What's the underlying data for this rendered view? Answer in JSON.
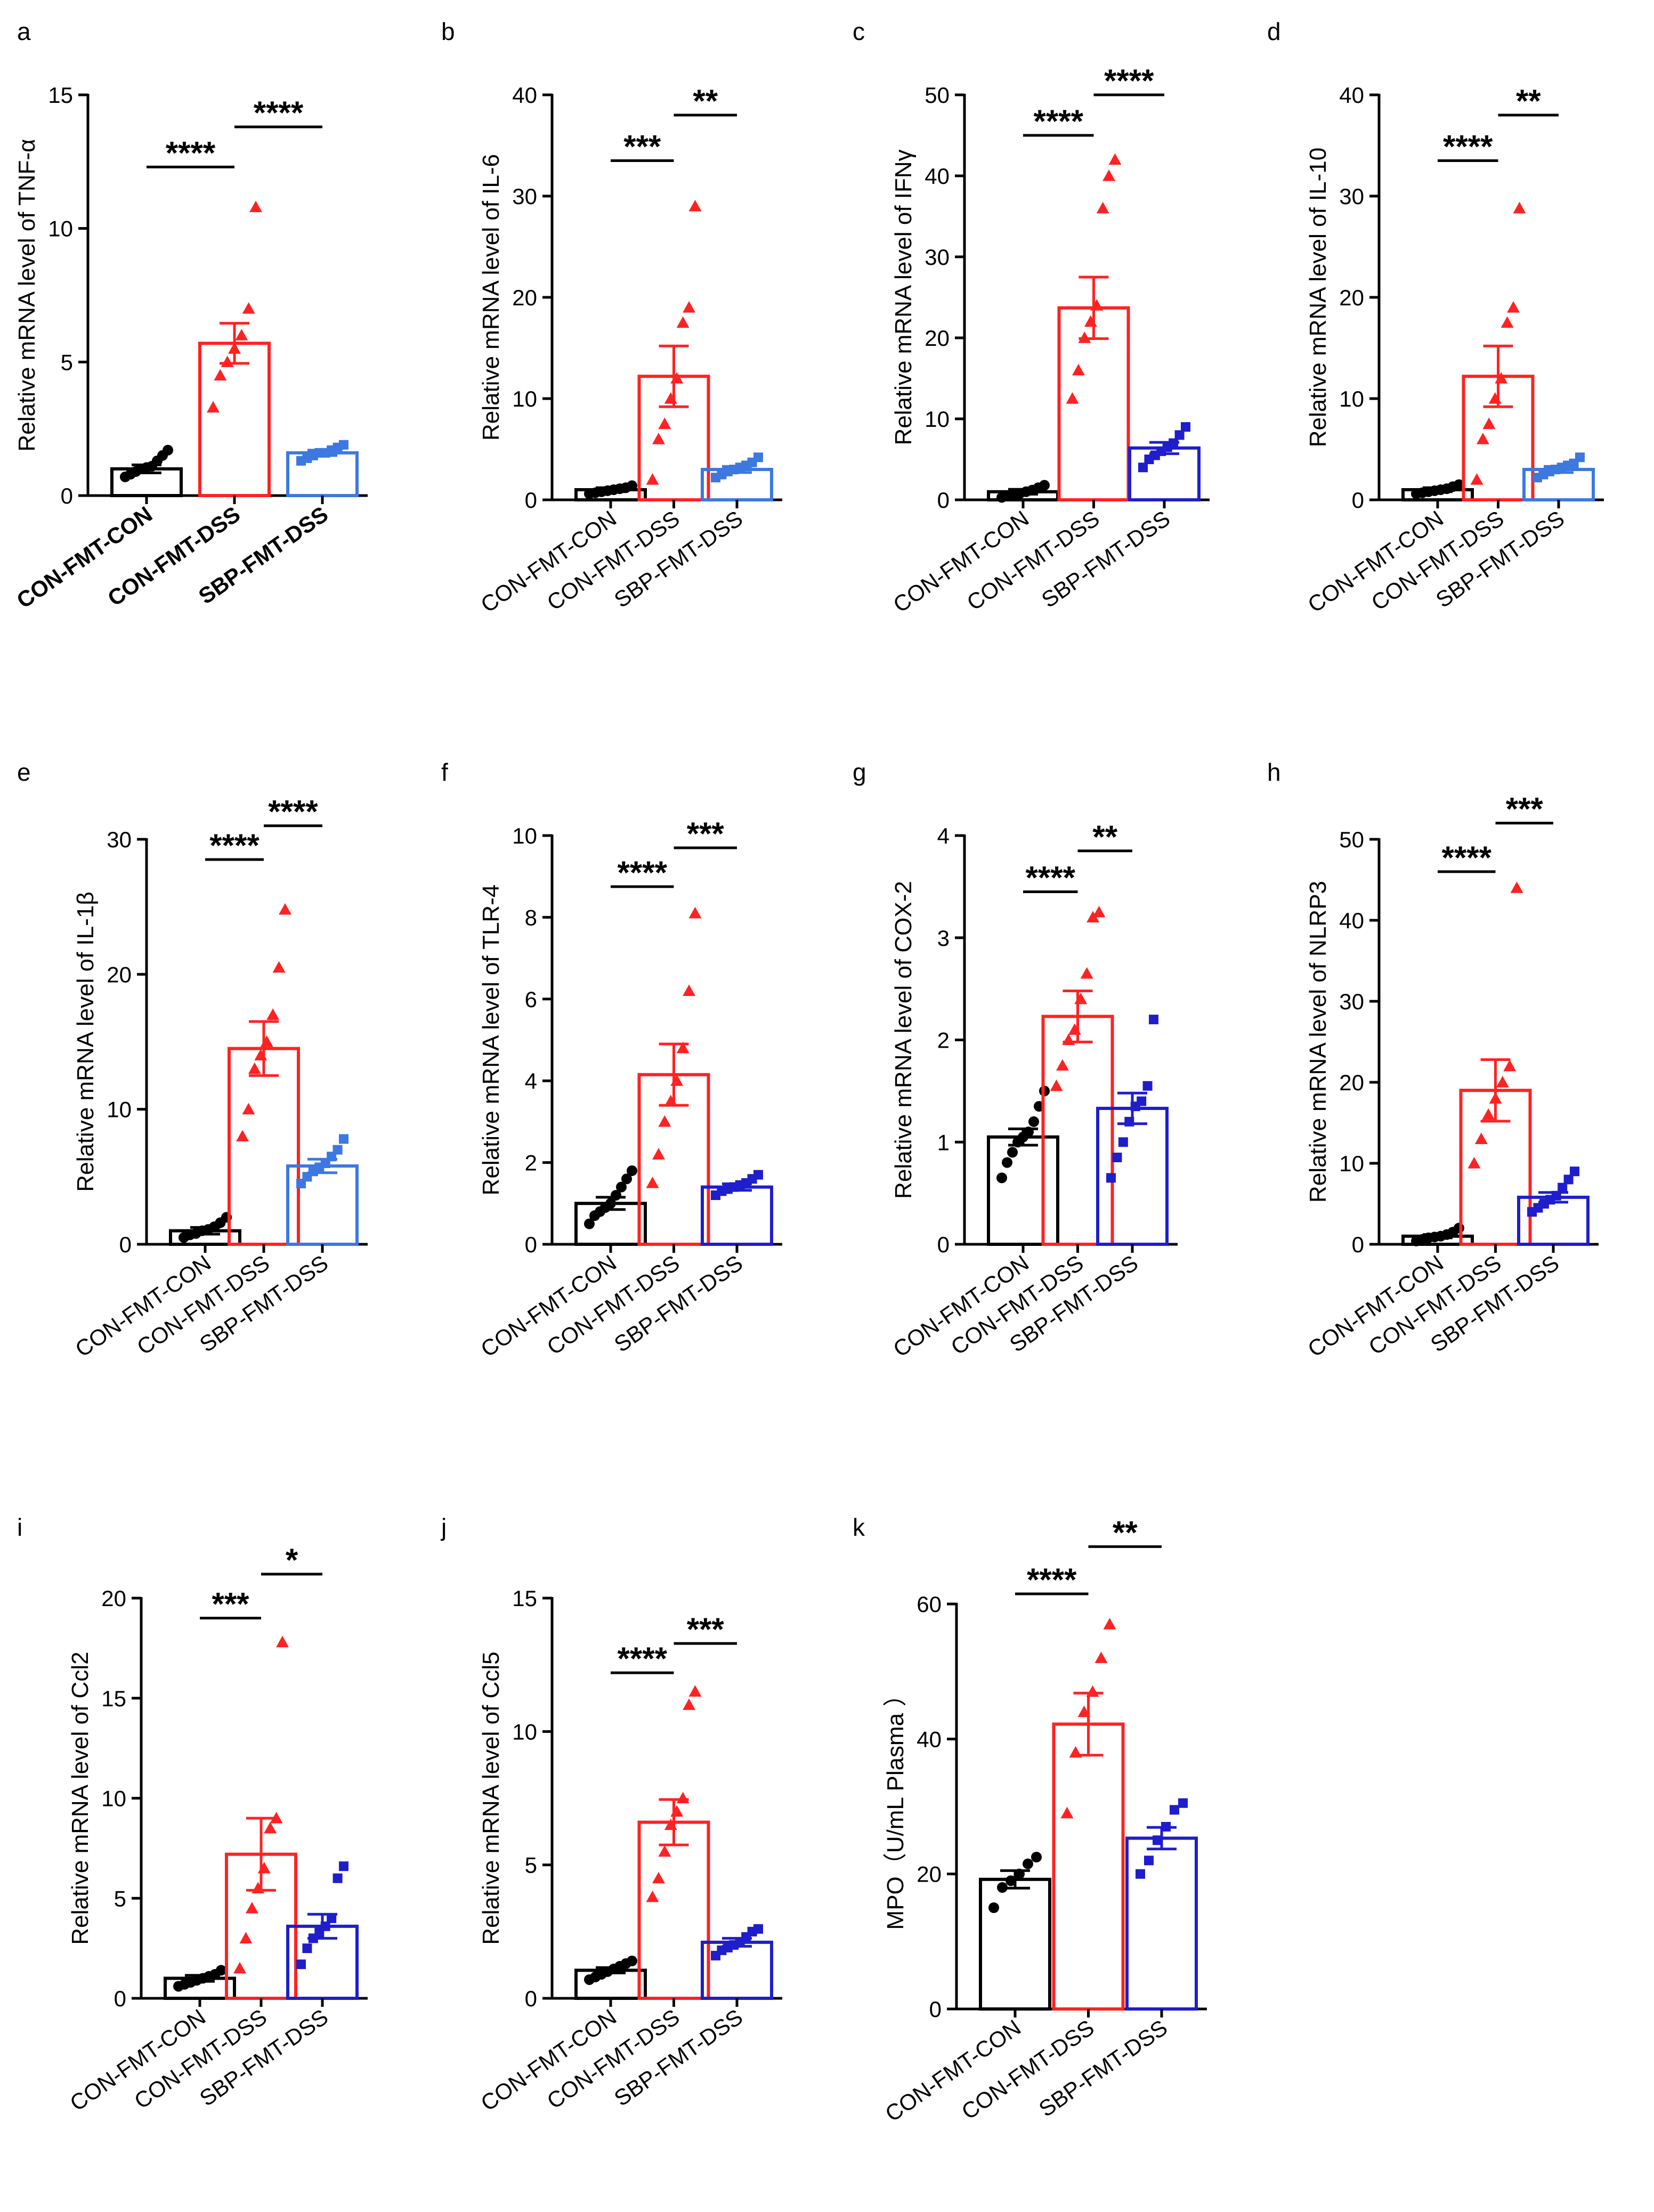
{
  "figure": {
    "x_categories": [
      "CON-FMT-CON",
      "CON-FMT-DSS",
      "SBP-FMT-DSS"
    ],
    "colors": {
      "con": "#000000",
      "dss": "#ff2222",
      "sbp": "#1e1ecc",
      "sbp_light": "#3c78e0"
    }
  },
  "chart_data": [
    {
      "id": "a",
      "type": "bar",
      "panel_label": "a",
      "ylabel": "Relative mRNA level of TNF-α",
      "ylim": [
        0,
        15
      ],
      "yticks": [
        0,
        5,
        10,
        15
      ],
      "bold_xlabels": true,
      "sbp_color": "sbp_light",
      "sbp_marker": "square",
      "categories": [
        "CON-FMT-CON",
        "CON-FMT-DSS",
        "SBP-FMT-DSS"
      ],
      "values": [
        1.0,
        5.7,
        1.6
      ],
      "errors": [
        0.15,
        0.75,
        0.1
      ],
      "points": [
        [
          0.7,
          0.8,
          0.9,
          1.0,
          1.05,
          1.1,
          1.3,
          1.5,
          1.7
        ],
        [
          3.3,
          4.5,
          5.0,
          5.5,
          6.0,
          7.0,
          10.8
        ],
        [
          1.3,
          1.4,
          1.5,
          1.6,
          1.6,
          1.7,
          1.8,
          1.9
        ]
      ],
      "significance": [
        {
          "between": [
            0,
            1
          ],
          "label": "****",
          "y": 12.3
        },
        {
          "between": [
            1,
            2
          ],
          "label": "****",
          "y": 13.8
        }
      ]
    },
    {
      "id": "b",
      "type": "bar",
      "panel_label": "b",
      "ylabel": "Relative mRNA level of IL-6",
      "ylim": [
        0,
        40
      ],
      "yticks": [
        0,
        10,
        20,
        30,
        40
      ],
      "sbp_color": "sbp_light",
      "sbp_marker": "square",
      "categories": [
        "CON-FMT-CON",
        "CON-FMT-DSS",
        "SBP-FMT-DSS"
      ],
      "values": [
        1.0,
        12.2,
        3.0
      ],
      "errors": [
        0.2,
        3.0,
        0.3
      ],
      "points": [
        [
          0.6,
          0.7,
          0.8,
          0.9,
          1.0,
          1.1,
          1.2,
          1.4
        ],
        [
          2.0,
          6.0,
          7.5,
          10.0,
          12.0,
          17.5,
          19.0,
          29.0
        ],
        [
          2.2,
          2.5,
          2.8,
          3.0,
          3.2,
          3.4,
          3.7,
          4.2
        ]
      ],
      "significance": [
        {
          "between": [
            0,
            1
          ],
          "label": "***",
          "y": 33.5
        },
        {
          "between": [
            1,
            2
          ],
          "label": "**",
          "y": 38.0
        }
      ]
    },
    {
      "id": "c",
      "type": "bar",
      "panel_label": "c",
      "ylabel": "Relative mRNA level of IFNγ",
      "ylim": [
        0,
        50
      ],
      "yticks": [
        0,
        10,
        20,
        30,
        40,
        50
      ],
      "sbp_color": "sbp",
      "sbp_marker": "square",
      "categories": [
        "CON-FMT-CON",
        "CON-FMT-DSS",
        "SBP-FMT-DSS"
      ],
      "values": [
        1.0,
        23.7,
        6.4
      ],
      "errors": [
        0.3,
        3.8,
        0.7
      ],
      "points": [
        [
          0.3,
          0.5,
          0.6,
          0.8,
          1.0,
          1.2,
          1.5,
          1.8
        ],
        [
          12.5,
          16.0,
          20.0,
          22.0,
          24.0,
          36.0,
          40.0,
          42.0
        ],
        [
          4.0,
          5.0,
          5.5,
          6.0,
          6.5,
          7.0,
          8.0,
          9.0
        ]
      ],
      "significance": [
        {
          "between": [
            0,
            1
          ],
          "label": "****",
          "y": 45.0
        },
        {
          "between": [
            1,
            2
          ],
          "label": "****",
          "y": 50.0
        }
      ]
    },
    {
      "id": "d",
      "type": "bar",
      "panel_label": "d",
      "ylabel": "Relative mRNA level of IL-10",
      "ylim": [
        0,
        40
      ],
      "yticks": [
        0,
        10,
        20,
        30,
        40
      ],
      "sbp_color": "sbp_light",
      "sbp_marker": "square",
      "categories": [
        "CON-FMT-CON",
        "CON-FMT-DSS",
        "SBP-FMT-DSS"
      ],
      "values": [
        1.0,
        12.2,
        3.0
      ],
      "errors": [
        0.2,
        3.0,
        0.3
      ],
      "points": [
        [
          0.6,
          0.7,
          0.8,
          0.9,
          1.0,
          1.1,
          1.3,
          1.5
        ],
        [
          2.0,
          6.0,
          7.5,
          10.0,
          12.0,
          17.5,
          19.0,
          28.8
        ],
        [
          2.2,
          2.5,
          2.8,
          3.0,
          3.2,
          3.4,
          3.6,
          4.2
        ]
      ],
      "significance": [
        {
          "between": [
            0,
            1
          ],
          "label": "****",
          "y": 33.5
        },
        {
          "between": [
            1,
            2
          ],
          "label": "**",
          "y": 38.0
        }
      ]
    },
    {
      "id": "e",
      "type": "bar",
      "panel_label": "e",
      "ylabel": "Relative mRNA level of IL-1β",
      "ylim": [
        0,
        30
      ],
      "yticks": [
        0,
        10,
        20,
        30
      ],
      "sbp_color": "sbp_light",
      "sbp_marker": "square",
      "categories": [
        "CON-FMT-CON",
        "CON-FMT-DSS",
        "SBP-FMT-DSS"
      ],
      "values": [
        1.0,
        14.5,
        5.8
      ],
      "errors": [
        0.25,
        2.0,
        0.5
      ],
      "points": [
        [
          0.5,
          0.7,
          0.8,
          1.0,
          1.1,
          1.3,
          1.6,
          2.0
        ],
        [
          8.0,
          10.0,
          13.0,
          14.0,
          15.0,
          17.0,
          20.5,
          24.8
        ],
        [
          4.5,
          5.0,
          5.4,
          5.7,
          6.0,
          6.5,
          7.0,
          7.8
        ]
      ],
      "significance": [
        {
          "between": [
            0,
            1
          ],
          "label": "****",
          "y": 28.5
        },
        {
          "between": [
            1,
            2
          ],
          "label": "****",
          "y": 31.0
        }
      ]
    },
    {
      "id": "f",
      "type": "bar",
      "panel_label": "f",
      "ylabel": "Relative mRNA level of TLR-4",
      "ylim": [
        0,
        10
      ],
      "yticks": [
        0,
        2,
        4,
        6,
        8,
        10
      ],
      "sbp_color": "sbp",
      "sbp_marker": "square",
      "categories": [
        "CON-FMT-CON",
        "CON-FMT-DSS",
        "SBP-FMT-DSS"
      ],
      "values": [
        1.0,
        4.15,
        1.4
      ],
      "errors": [
        0.15,
        0.75,
        0.08
      ],
      "points": [
        [
          0.5,
          0.7,
          0.8,
          0.9,
          1.0,
          1.2,
          1.4,
          1.6,
          1.8
        ],
        [
          1.5,
          2.2,
          3.0,
          3.5,
          4.0,
          4.8,
          6.2,
          8.1
        ],
        [
          1.2,
          1.3,
          1.35,
          1.4,
          1.45,
          1.5,
          1.6,
          1.7
        ]
      ],
      "significance": [
        {
          "between": [
            0,
            1
          ],
          "label": "****",
          "y": 8.75
        },
        {
          "between": [
            1,
            2
          ],
          "label": "***",
          "y": 9.7
        }
      ]
    },
    {
      "id": "g",
      "type": "bar",
      "panel_label": "g",
      "ylabel": "Relative mRNA level of COX-2",
      "ylim": [
        0,
        4
      ],
      "yticks": [
        0,
        1,
        2,
        3,
        4
      ],
      "sbp_color": "sbp",
      "sbp_marker": "square",
      "categories": [
        "CON-FMT-CON",
        "CON-FMT-DSS",
        "SBP-FMT-DSS"
      ],
      "values": [
        1.05,
        2.23,
        1.33
      ],
      "errors": [
        0.08,
        0.25,
        0.15
      ],
      "points": [
        [
          0.65,
          0.8,
          0.9,
          1.0,
          1.05,
          1.1,
          1.2,
          1.35,
          1.5
        ],
        [
          1.55,
          1.75,
          2.0,
          2.1,
          2.4,
          2.65,
          3.2,
          3.25
        ],
        [
          0.65,
          0.85,
          1.0,
          1.2,
          1.35,
          1.4,
          1.55,
          2.2
        ]
      ],
      "significance": [
        {
          "between": [
            0,
            1
          ],
          "label": "****",
          "y": 3.45
        },
        {
          "between": [
            1,
            2
          ],
          "label": "**",
          "y": 3.85
        }
      ]
    },
    {
      "id": "h",
      "type": "bar",
      "panel_label": "h",
      "ylabel": "Relative mRNA level of NLRP3",
      "ylim": [
        0,
        50
      ],
      "yticks": [
        0,
        10,
        20,
        30,
        40,
        50
      ],
      "sbp_color": "sbp",
      "sbp_marker": "square",
      "categories": [
        "CON-FMT-CON",
        "CON-FMT-DSS",
        "SBP-FMT-DSS"
      ],
      "values": [
        1.0,
        19.0,
        5.8
      ],
      "errors": [
        0.2,
        3.8,
        0.6
      ],
      "points": [
        [
          0.4,
          0.6,
          0.8,
          0.9,
          1.0,
          1.2,
          1.5,
          2.0
        ],
        [
          10.0,
          13.0,
          16.0,
          18.0,
          20.0,
          22.0,
          44.0
        ],
        [
          4.0,
          4.5,
          5.0,
          5.5,
          6.0,
          7.0,
          8.0,
          9.0
        ]
      ],
      "significance": [
        {
          "between": [
            0,
            1
          ],
          "label": "****",
          "y": 46.0
        },
        {
          "between": [
            1,
            2
          ],
          "label": "***",
          "y": 52.0
        }
      ]
    },
    {
      "id": "i",
      "type": "bar",
      "panel_label": "i",
      "ylabel": "Relative mRNA level of Ccl2",
      "ylim": [
        0,
        20
      ],
      "yticks": [
        0,
        5,
        10,
        15,
        20
      ],
      "sbp_color": "sbp",
      "sbp_marker": "square",
      "categories": [
        "CON-FMT-CON",
        "CON-FMT-DSS",
        "SBP-FMT-DSS"
      ],
      "values": [
        1.0,
        7.2,
        3.6
      ],
      "errors": [
        0.15,
        1.8,
        0.6
      ],
      "points": [
        [
          0.6,
          0.7,
          0.8,
          0.9,
          1.0,
          1.1,
          1.2,
          1.4
        ],
        [
          1.5,
          3.0,
          4.5,
          5.5,
          6.5,
          8.5,
          9.0,
          17.8
        ],
        [
          1.7,
          2.5,
          3.0,
          3.3,
          3.6,
          4.0,
          6.0,
          6.6
        ]
      ],
      "significance": [
        {
          "between": [
            0,
            1
          ],
          "label": "***",
          "y": 19.0
        },
        {
          "between": [
            1,
            2
          ],
          "label": "*",
          "y": 21.2
        }
      ]
    },
    {
      "id": "j",
      "type": "bar",
      "panel_label": "j",
      "ylabel": "Relative mRNA level of Ccl5",
      "ylim": [
        0,
        15
      ],
      "yticks": [
        0,
        5,
        10,
        15
      ],
      "sbp_color": "sbp",
      "sbp_marker": "square",
      "categories": [
        "CON-FMT-CON",
        "CON-FMT-DSS",
        "SBP-FMT-DSS"
      ],
      "values": [
        1.05,
        6.6,
        2.1
      ],
      "errors": [
        0.1,
        0.85,
        0.15
      ],
      "points": [
        [
          0.7,
          0.8,
          0.9,
          1.0,
          1.1,
          1.2,
          1.3,
          1.4
        ],
        [
          3.8,
          4.5,
          5.5,
          6.5,
          7.0,
          7.5,
          11.0,
          11.5
        ],
        [
          1.6,
          1.8,
          1.9,
          2.0,
          2.1,
          2.3,
          2.5,
          2.6
        ]
      ],
      "significance": [
        {
          "between": [
            0,
            1
          ],
          "label": "****",
          "y": 12.2
        },
        {
          "between": [
            1,
            2
          ],
          "label": "***",
          "y": 13.3
        }
      ]
    },
    {
      "id": "k",
      "type": "bar",
      "panel_label": "k",
      "ylabel": "MPO（U/mL Plasma  ）",
      "ylim": [
        0,
        60
      ],
      "yticks": [
        0,
        20,
        40,
        60
      ],
      "sbp_color": "sbp",
      "sbp_marker": "square",
      "categories": [
        "CON-FMT-CON",
        "CON-FMT-DSS",
        "SBP-FMT-DSS"
      ],
      "values": [
        19.2,
        42.2,
        25.3
      ],
      "errors": [
        1.3,
        4.6,
        1.6
      ],
      "points": [
        [
          15.0,
          18.0,
          19.0,
          20.0,
          21.5,
          22.5
        ],
        [
          29.0,
          38.0,
          44.0,
          47.0,
          52.0,
          57.0
        ],
        [
          20.0,
          22.0,
          25.0,
          27.0,
          29.5,
          30.5
        ]
      ],
      "significance": [
        {
          "between": [
            0,
            1
          ],
          "label": "****",
          "y": 61.5
        },
        {
          "between": [
            1,
            2
          ],
          "label": "**",
          "y": 68.5
        }
      ]
    }
  ]
}
